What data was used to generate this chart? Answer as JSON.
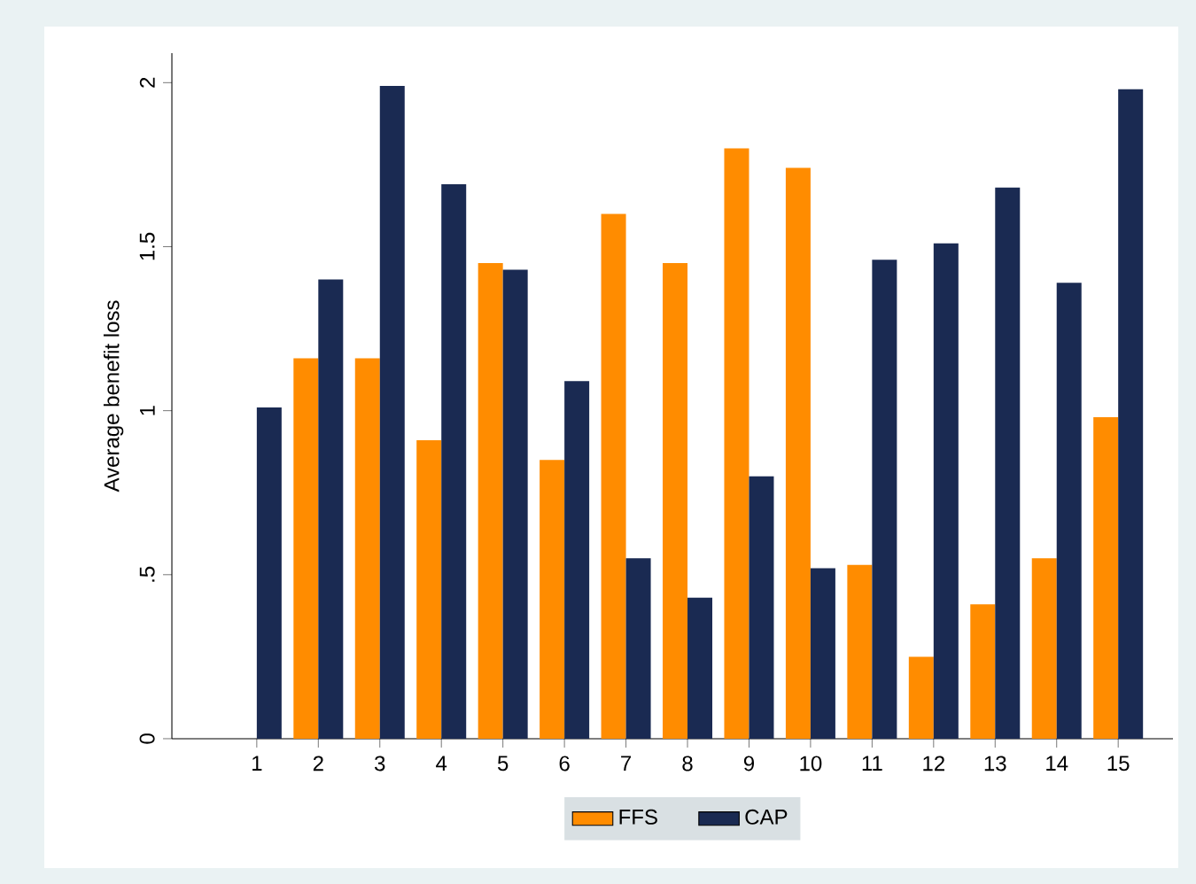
{
  "chart_data": {
    "type": "bar",
    "ylabel": "Average benefit loss",
    "categories": [
      "1",
      "2",
      "3",
      "4",
      "5",
      "6",
      "7",
      "8",
      "9",
      "10",
      "11",
      "12",
      "13",
      "14",
      "15"
    ],
    "series": [
      {
        "name": "FFS",
        "color": "#ff8c00",
        "values": [
          0,
          1.16,
          1.16,
          0.91,
          1.45,
          0.85,
          1.6,
          1.45,
          1.8,
          1.74,
          0.53,
          0.25,
          0.41,
          0.55,
          0.98
        ]
      },
      {
        "name": "CAP",
        "color": "#1a2a52",
        "values": [
          1.01,
          1.4,
          1.99,
          1.69,
          1.43,
          1.09,
          0.55,
          0.43,
          0.8,
          0.52,
          1.46,
          1.51,
          1.68,
          1.39,
          1.98
        ]
      }
    ],
    "ylim": [
      0,
      2.09
    ],
    "yticks": [
      0,
      {
        "value": 0.5,
        "label": ".5"
      },
      1,
      {
        "value": 1.5,
        "label": "1.5"
      },
      2
    ],
    "grid": false,
    "legend": "bottom"
  }
}
